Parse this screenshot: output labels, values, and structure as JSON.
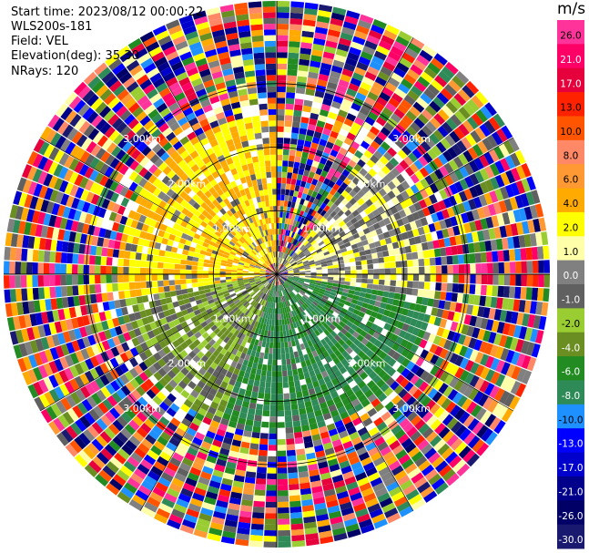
{
  "header": {
    "start_time": "Start time: 2023/08/12 00:00:22",
    "instrument": "WLS200s-181",
    "field": "Field: VEL",
    "elevation": "Elevation(deg): 35.30",
    "nrays": "NRays: 120"
  },
  "colorbar": {
    "unit": "m/s",
    "ticks": [
      "26.0",
      "21.0",
      "17.0",
      "13.0",
      "10.0",
      "8.0",
      "6.0",
      "4.0",
      "2.0",
      "1.0",
      "0.0",
      "-1.0",
      "-2.0",
      "-4.0",
      "-6.0",
      "-8.0",
      "-10.0",
      "-13.0",
      "-17.0",
      "-21.0",
      "-26.0",
      "-30.0"
    ],
    "colors": [
      "#ff3399",
      "#ff0066",
      "#e6003c",
      "#ff2200",
      "#ff5500",
      "#ff8866",
      "#ff9933",
      "#ffaa00",
      "#ffff00",
      "#ffffaa",
      "#808080",
      "#606060",
      "#9acd32",
      "#6b8e23",
      "#228b22",
      "#2e8b57",
      "#1e90ff",
      "#0000ff",
      "#0000cd",
      "#00008b",
      "#000066",
      "#191970"
    ]
  },
  "chart_data": {
    "type": "heatmap",
    "title": "",
    "field": "VEL",
    "units": "m/s",
    "nrays": 120,
    "range_rings_km": [
      1.0,
      2.0,
      3.0
    ],
    "ring_labels": [
      "1.00km",
      "2.00km",
      "3.00km"
    ],
    "max_range_km": 4.3,
    "sectors": [
      {
        "azimuth_from_deg": 0,
        "azimuth_to_deg": 40,
        "dominant_velocity_ms": "mixed"
      },
      {
        "azimuth_from_deg": 40,
        "azimuth_to_deg": 100,
        "dominant_velocity_ms": 1.0
      },
      {
        "azimuth_from_deg": 100,
        "azimuth_to_deg": 200,
        "dominant_velocity_ms": -6.0
      },
      {
        "azimuth_from_deg": 200,
        "azimuth_to_deg": 260,
        "dominant_velocity_ms": -2.0
      },
      {
        "azimuth_from_deg": 260,
        "azimuth_to_deg": 360,
        "dominant_velocity_ms": 4.0
      }
    ],
    "noise_beyond_km": 2.5
  }
}
